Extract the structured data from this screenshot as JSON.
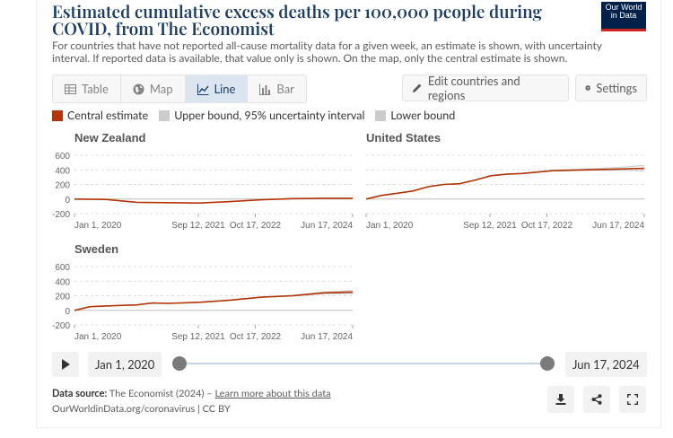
{
  "header": {
    "title": "Estimated cumulative excess deaths per 100,000 people during COVID, from The Economist",
    "subtitle": "For countries that have not reported all-cause mortality data for a given week, an estimate is shown, with uncertainty interval. If reported data is available, that value only is shown. On the map, only the central estimate is shown.",
    "logo_line1": "Our World",
    "logo_line2": "in Data"
  },
  "tabs": [
    {
      "label": "Table",
      "icon": "table-icon",
      "active": false
    },
    {
      "label": "Map",
      "icon": "globe-icon",
      "active": false
    },
    {
      "label": "Line",
      "icon": "line-chart-icon",
      "active": true
    },
    {
      "label": "Bar",
      "icon": "bar-chart-icon",
      "active": false
    }
  ],
  "toolbar": {
    "edit_label": "Edit countries and regions",
    "settings_label": "Settings"
  },
  "legend": [
    {
      "label": "Central estimate",
      "color": "#b13507"
    },
    {
      "label": "Upper bound, 95% uncertainty interval",
      "color": "#cccccc"
    },
    {
      "label": "Lower bound",
      "color": "#cccccc"
    }
  ],
  "timeline": {
    "start": "Jan 1, 2020",
    "end": "Jun 17, 2024"
  },
  "footer": {
    "source_label": "Data source:",
    "source_text": "The Economist (2024) – ",
    "source_link": "Learn more about this data",
    "url": "OurWorldinData.org/coronavirus | CC BY"
  },
  "colors": {
    "central": "#b13507",
    "bounds": "#cccccc",
    "accent": "#1d3d63"
  },
  "chart_data": [
    {
      "type": "line",
      "title": "New Zealand",
      "ylim": [
        -200,
        600
      ],
      "yticks": [
        -200,
        0,
        200,
        400,
        600
      ],
      "xticks": [
        "Jan 1, 2020",
        "Sep 12, 2021",
        "Oct 17, 2022",
        "Jun 17, 2024"
      ],
      "x": [
        "2020-01-01",
        "2020-07-01",
        "2021-01-01",
        "2021-07-01",
        "2022-01-01",
        "2022-07-01",
        "2023-01-01",
        "2023-07-01",
        "2024-01-01",
        "2024-06-17"
      ],
      "series": [
        {
          "name": "Central estimate",
          "values": [
            0,
            -5,
            -45,
            -50,
            -55,
            -35,
            -10,
            5,
            10,
            10
          ]
        }
      ]
    },
    {
      "type": "line",
      "title": "United States",
      "ylim": [
        -200,
        600
      ],
      "yticks": [
        -200,
        0,
        200,
        400,
        600
      ],
      "xticks": [
        "Jan 1, 2020",
        "Sep 12, 2021",
        "Oct 17, 2022",
        "Jun 17, 2024"
      ],
      "x": [
        "2020-01-01",
        "2020-04-01",
        "2020-07-01",
        "2020-10-01",
        "2021-01-01",
        "2021-04-01",
        "2021-07-01",
        "2021-10-01",
        "2022-01-01",
        "2022-04-01",
        "2022-07-01",
        "2022-10-01",
        "2023-01-01",
        "2023-07-01",
        "2024-01-01",
        "2024-06-17"
      ],
      "series": [
        {
          "name": "Central estimate",
          "values": [
            0,
            50,
            80,
            110,
            170,
            200,
            210,
            260,
            320,
            340,
            350,
            370,
            390,
            400,
            410,
            420
          ]
        },
        {
          "name": "Upper bound, 95% uncertainty interval",
          "values": [
            0,
            50,
            80,
            110,
            170,
            200,
            210,
            260,
            320,
            340,
            350,
            370,
            395,
            410,
            430,
            460
          ]
        },
        {
          "name": "Lower bound",
          "values": [
            0,
            50,
            80,
            110,
            170,
            200,
            210,
            260,
            320,
            340,
            350,
            370,
            385,
            395,
            395,
            390
          ]
        }
      ]
    },
    {
      "type": "line",
      "title": "Sweden",
      "ylim": [
        -200,
        600
      ],
      "yticks": [
        -200,
        0,
        200,
        400,
        600
      ],
      "xticks": [
        "Jan 1, 2020",
        "Sep 12, 2021",
        "Oct 17, 2022",
        "Jun 17, 2024"
      ],
      "x": [
        "2020-01-01",
        "2020-04-01",
        "2020-07-01",
        "2021-01-01",
        "2021-04-01",
        "2021-07-01",
        "2022-01-01",
        "2022-07-01",
        "2023-01-01",
        "2023-07-01",
        "2024-01-01",
        "2024-06-17"
      ],
      "series": [
        {
          "name": "Central estimate",
          "values": [
            0,
            50,
            60,
            75,
            100,
            95,
            110,
            140,
            180,
            200,
            240,
            250
          ]
        },
        {
          "name": "Upper bound, 95% uncertainty interval",
          "values": [
            0,
            50,
            60,
            75,
            100,
            95,
            110,
            140,
            180,
            205,
            250,
            270
          ]
        },
        {
          "name": "Lower bound",
          "values": [
            0,
            50,
            60,
            75,
            100,
            95,
            110,
            140,
            180,
            195,
            230,
            230
          ]
        }
      ]
    }
  ]
}
